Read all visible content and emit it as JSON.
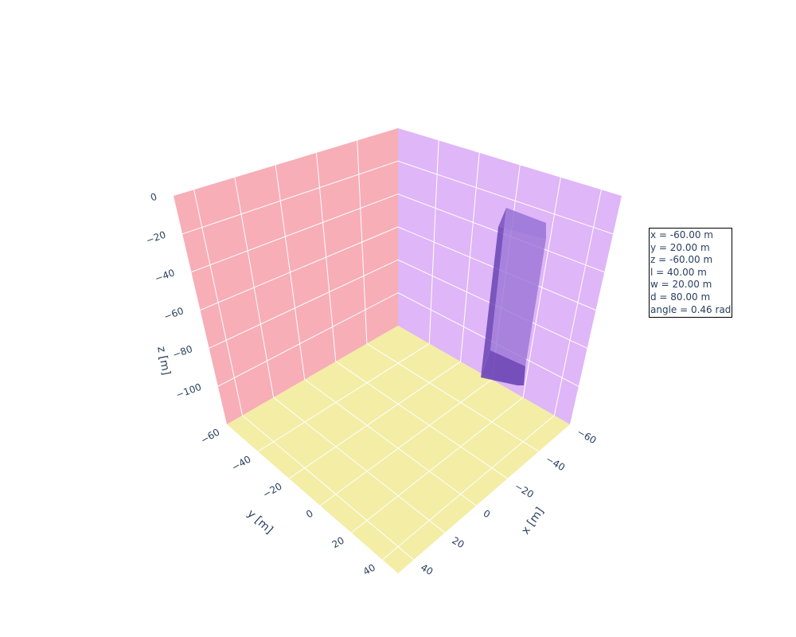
{
  "chart_data": {
    "type": "3d-box",
    "xlabel": "x [m]",
    "ylabel": "y [m]",
    "zlabel": "z [m]",
    "x_ticks": [
      "−60",
      "−40",
      "−20",
      "0",
      "20",
      "40"
    ],
    "y_ticks": [
      "−60",
      "−40",
      "−20",
      "0",
      "20",
      "40"
    ],
    "z_ticks": [
      "0",
      "−20",
      "−40",
      "−60",
      "−80",
      "−100"
    ],
    "xlim": [
      -60,
      50
    ],
    "ylim": [
      -60,
      50
    ],
    "zlim": [
      -120,
      0
    ],
    "grid": true,
    "colors": {
      "xz_wall": "#f7aeb7",
      "yz_wall": "#dfb6f7",
      "floor": "#f3eda6",
      "box_dark": "#6a44b4",
      "box_light": "#9a75d6"
    },
    "box": {
      "x": -60,
      "y": 20,
      "z": -60,
      "l": 40,
      "w": 20,
      "d": 80,
      "angle": 0.46
    },
    "annotation_lines": [
      "x = -60.00 m",
      "y = 20.00 m",
      "z = -60.00 m",
      "l = 40.00 m",
      "w = 20.00 m",
      "d = 80.00 m",
      "angle = 0.46 rad"
    ]
  }
}
